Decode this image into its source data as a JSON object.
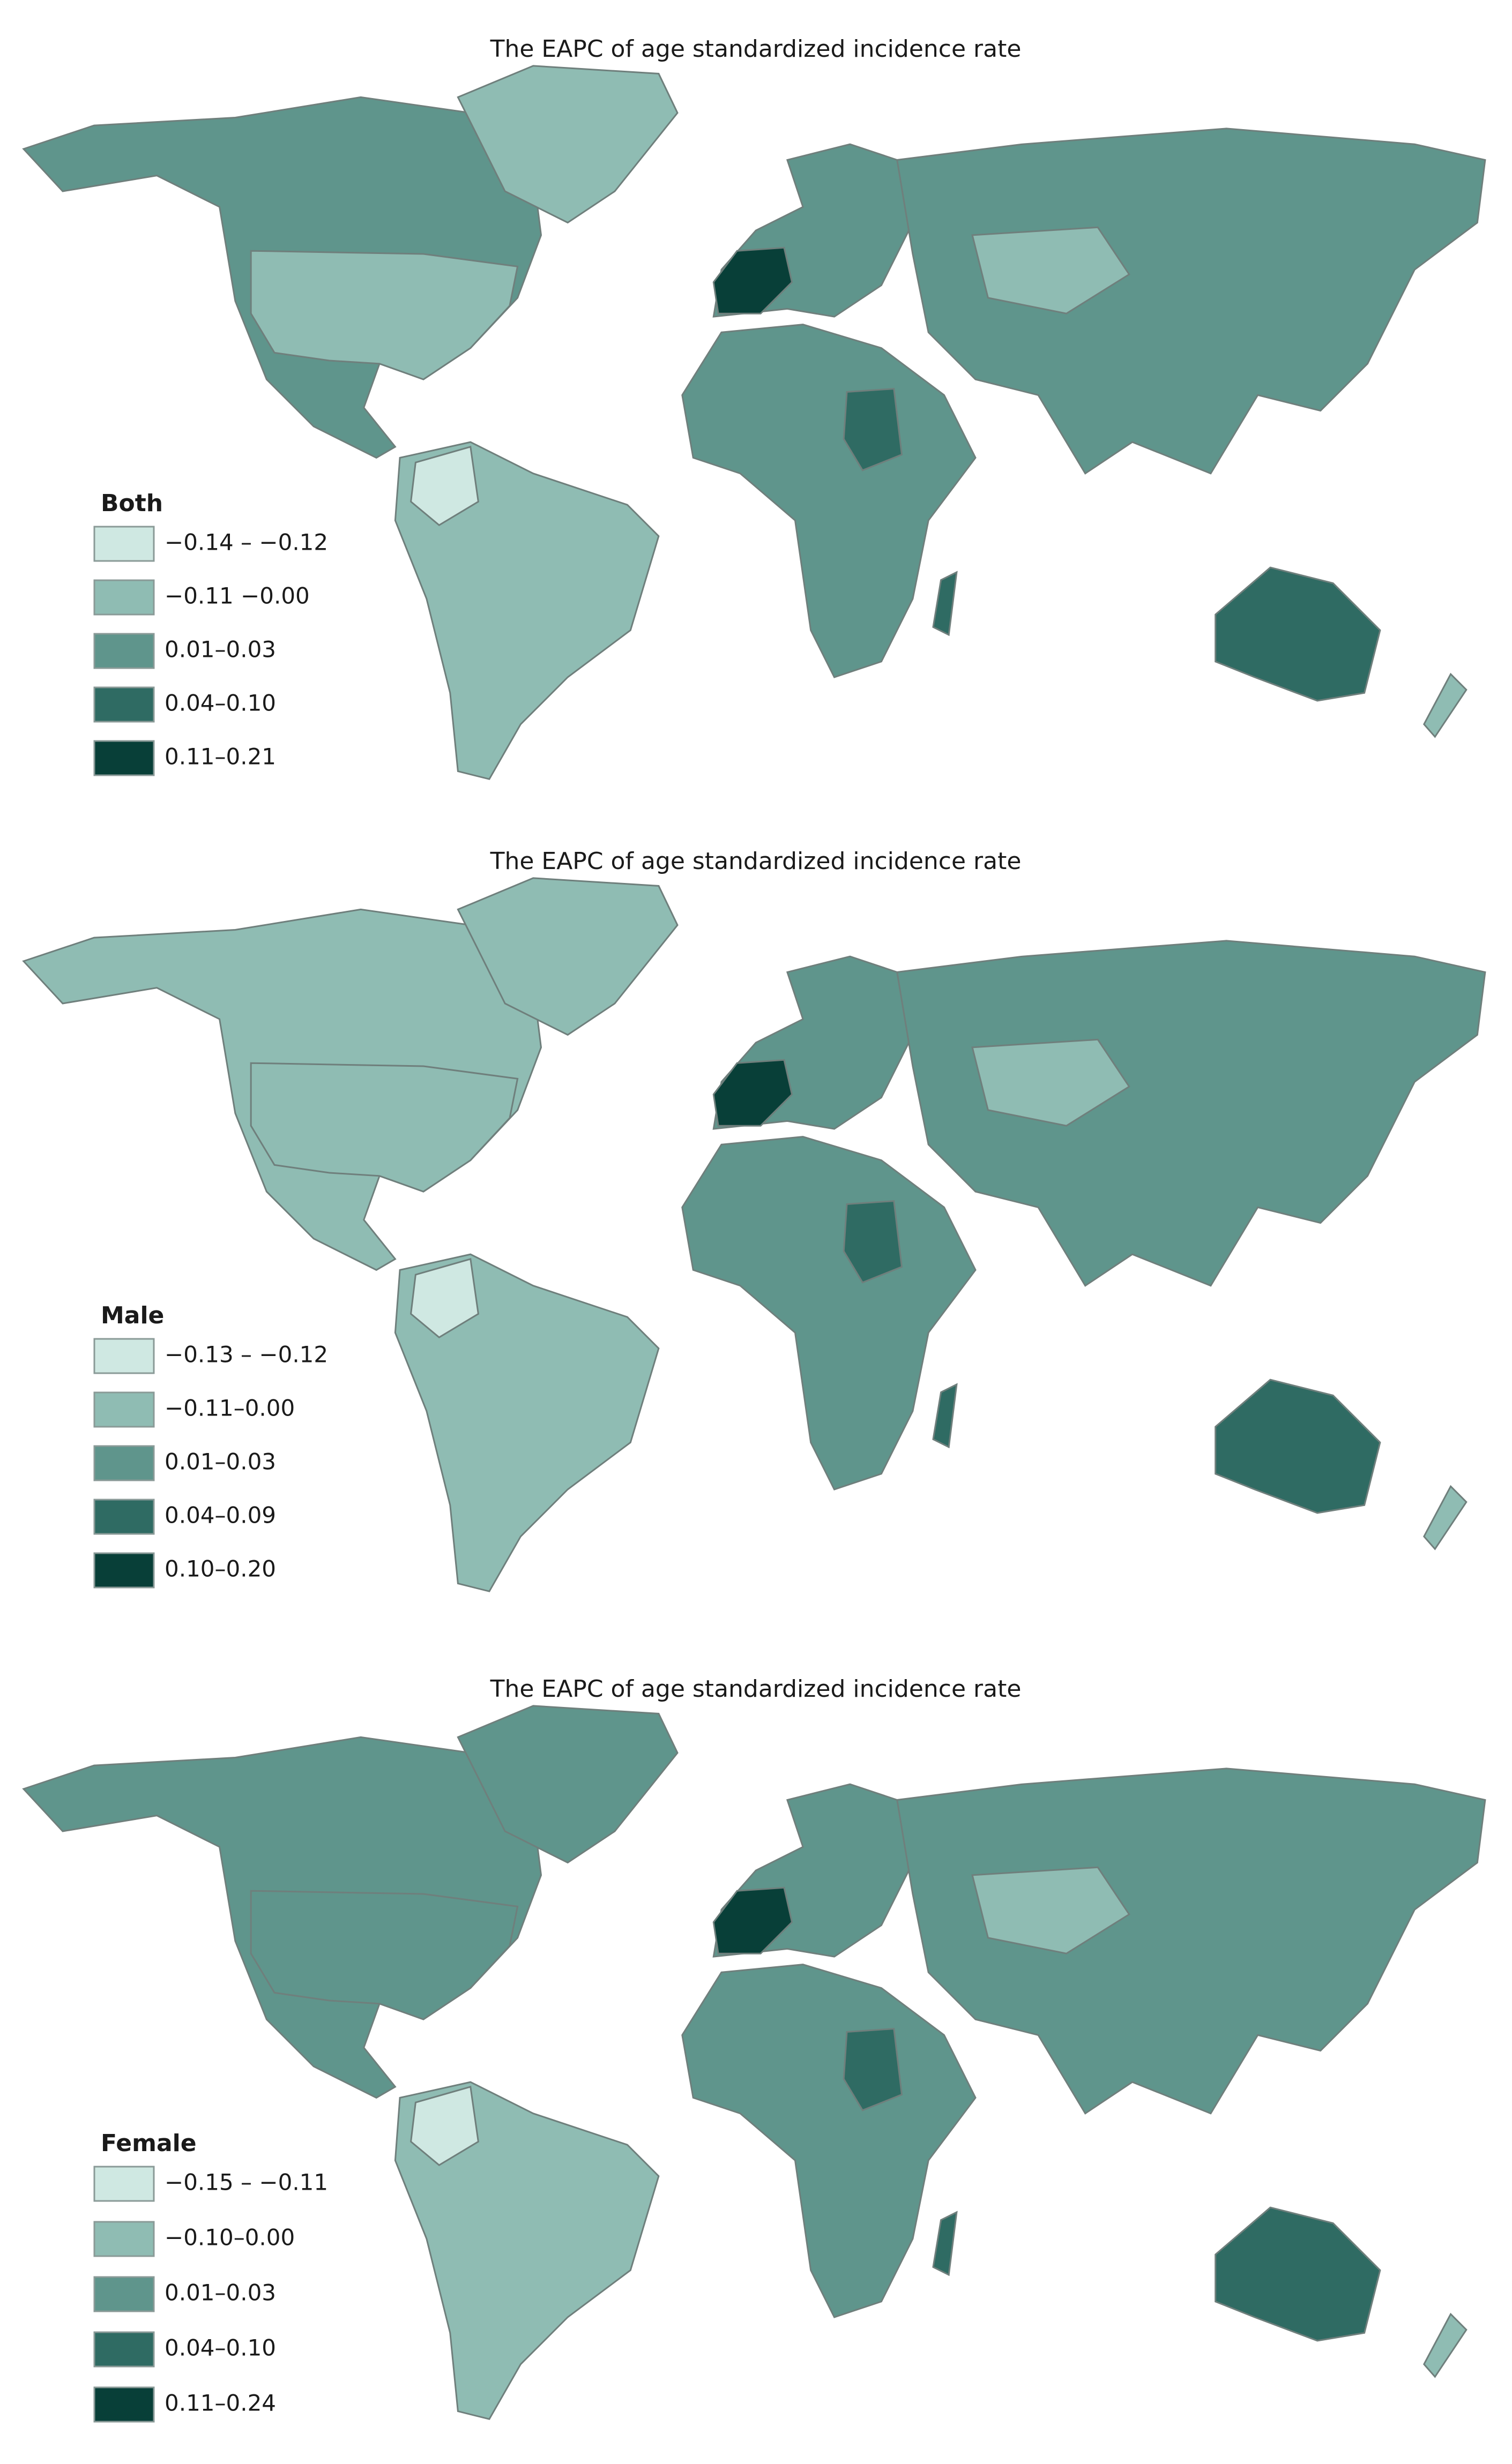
{
  "maps": [
    {
      "title": "The EAPC of age standardized incidence rate",
      "legend": {
        "title": "Both",
        "items": [
          {
            "label": "−0.14 – −0.12",
            "color": "#cfe8e2"
          },
          {
            "label": "−0.11 −0.00",
            "color": "#8fbcb3"
          },
          {
            "label": "0.01–0.03",
            "color": "#5f958c"
          },
          {
            "label": "0.04–0.10",
            "color": "#2f6b63"
          },
          {
            "label": "0.11–0.21",
            "color": "#083f38"
          }
        ]
      }
    },
    {
      "title": "The EAPC of age standardized incidence rate",
      "legend": {
        "title": "Male",
        "items": [
          {
            "label": "−0.13 – −0.12",
            "color": "#cfe8e2"
          },
          {
            "label": "−0.11–0.00",
            "color": "#8fbcb3"
          },
          {
            "label": "0.01–0.03",
            "color": "#5f958c"
          },
          {
            "label": "0.04–0.09",
            "color": "#2f6b63"
          },
          {
            "label": "0.10–0.20",
            "color": "#083f38"
          }
        ]
      }
    },
    {
      "title": "The EAPC of age standardized incidence rate",
      "legend": {
        "title": "Female",
        "items": [
          {
            "label": "−0.15 – −0.11",
            "color": "#cfe8e2"
          },
          {
            "label": "−0.10–0.00",
            "color": "#8fbcb3"
          },
          {
            "label": "0.01–0.03",
            "color": "#5f958c"
          },
          {
            "label": "0.04–0.10",
            "color": "#2f6b63"
          },
          {
            "label": "0.11–0.24",
            "color": "#083f38"
          }
        ]
      }
    }
  ]
}
